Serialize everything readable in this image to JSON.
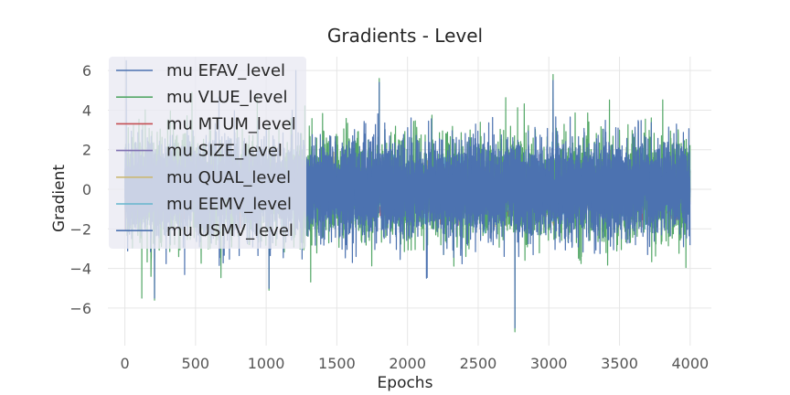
{
  "chart_data": {
    "type": "line",
    "title": "Gradients - Level",
    "xlabel": "Epochs",
    "ylabel": "Gradient",
    "xlim": [
      -120,
      4150
    ],
    "ylim": [
      -7.9,
      6.7
    ],
    "x_ticks": [
      0,
      500,
      1000,
      1500,
      2000,
      2500,
      3000,
      3500,
      4000
    ],
    "y_ticks": [
      -6,
      -4,
      -2,
      0,
      2,
      4,
      6
    ],
    "y_tick_labels": [
      "−6",
      "−4",
      "−2",
      "0",
      "2",
      "4",
      "6"
    ],
    "grid": true,
    "legend_position": "upper-left",
    "series": [
      {
        "name": "mu EFAV_level",
        "color": "#4c72b0",
        "n_points": 4000,
        "amplitude": 1.0,
        "peaks": [
          [
            10,
            6.5
          ],
          [
            1210,
            6.0
          ]
        ]
      },
      {
        "name": "mu VLUE_level",
        "color": "#55a868",
        "n_points": 4000,
        "amplitude": 1.35,
        "peaks": [
          [
            3030,
            5.8
          ],
          [
            1800,
            5.6
          ],
          [
            2760,
            -7.2
          ],
          [
            120,
            -5.5
          ],
          [
            210,
            -5.6
          ],
          [
            1020,
            -5.1
          ]
        ]
      },
      {
        "name": "mu MTUM_level",
        "color": "#c44e52",
        "n_points": 4000,
        "amplitude": 0.6,
        "peaks": []
      },
      {
        "name": "mu SIZE_level",
        "color": "#8172b2",
        "n_points": 4000,
        "amplitude": 0.6,
        "peaks": []
      },
      {
        "name": "mu QUAL_level",
        "color": "#ccb974",
        "n_points": 4000,
        "amplitude": 0.6,
        "peaks": []
      },
      {
        "name": "mu EEMV_level",
        "color": "#64b5cd",
        "n_points": 4000,
        "amplitude": 0.7,
        "peaks": []
      },
      {
        "name": "mu USMV_level",
        "color": "#4c72b0",
        "n_points": 4000,
        "amplitude": 1.25,
        "peaks": [
          [
            1800,
            5.4
          ],
          [
            3030,
            5.5
          ],
          [
            2760,
            -7.0
          ],
          [
            210,
            -5.5
          ],
          [
            1020,
            -5.0
          ]
        ]
      }
    ]
  }
}
